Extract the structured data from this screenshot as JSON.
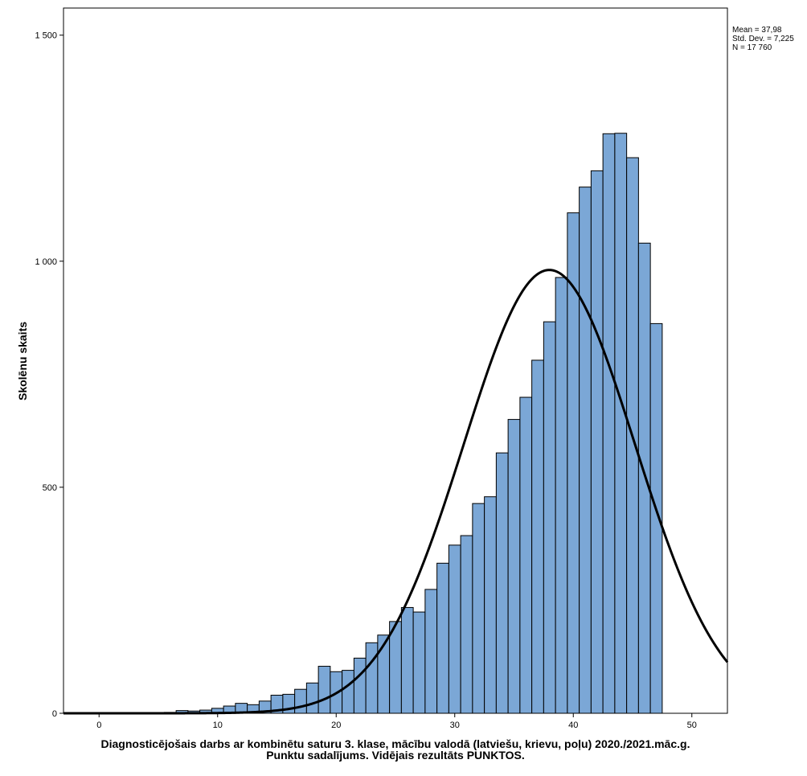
{
  "chart_data": {
    "type": "bar",
    "subtype": "histogram",
    "title": "",
    "xlabel_line1": "Diagnosticējošais darbs ar kombinētu saturu 3. klase, mācību valodā (latviešu, krievu, poļu) 2020./2021.māc.g.",
    "xlabel_line2": "Punktu sadalījums. Vidējais rezultāts PUNKTOS.",
    "ylabel": "Skolēnu skaits",
    "bar_color": "#7ba7d6",
    "curve_color": "#000000",
    "xlim": [
      -3,
      53
    ],
    "ylim": [
      0,
      1560
    ],
    "x_ticks": [
      0,
      10,
      20,
      30,
      40,
      50
    ],
    "x_tick_labels": [
      "0",
      "10",
      "20",
      "30",
      "40",
      "50"
    ],
    "y_ticks": [
      0,
      500,
      1000,
      1500
    ],
    "y_tick_labels": [
      "0",
      "500",
      "1 000",
      "1 500"
    ],
    "bin_width": 1,
    "bins": [
      1,
      2,
      3,
      4,
      5,
      6,
      7,
      8,
      9,
      10,
      11,
      12,
      13,
      14,
      15,
      16,
      17,
      18,
      19,
      20,
      21,
      22,
      23,
      24,
      25,
      26,
      27,
      28,
      29,
      30,
      31,
      32,
      33,
      34,
      35,
      36,
      37,
      38,
      39,
      40,
      41,
      42,
      43,
      44,
      45,
      46,
      47
    ],
    "values": [
      0,
      0,
      0,
      0,
      1,
      2,
      6,
      5,
      7,
      11,
      16,
      22,
      19,
      27,
      40,
      42,
      53,
      67,
      104,
      92,
      95,
      122,
      156,
      173,
      203,
      234,
      224,
      274,
      332,
      372,
      393,
      464,
      479,
      576,
      650,
      699,
      781,
      866,
      964,
      1107,
      1164,
      1200,
      1282,
      1283,
      1229,
      1040,
      862
    ],
    "normal_curve": {
      "mean": 37.98,
      "std": 7.225,
      "n": 17760
    },
    "stats_box": {
      "mean": "Mean = 37,98",
      "std": "Std. Dev. = 7,225",
      "n": "N = 17 760"
    }
  }
}
